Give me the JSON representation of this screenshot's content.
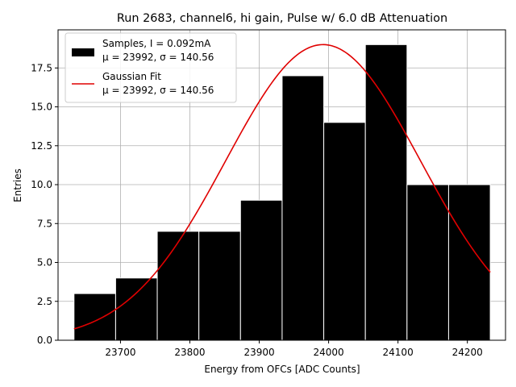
{
  "chart_data": {
    "type": "bar",
    "title": "Run 2683, channel6, hi gain, Pulse w/ 6.0 dB Attenuation",
    "xlabel": "Energy from OFCs [ADC Counts]",
    "ylabel": "Entries",
    "xlim": [
      23610,
      24255
    ],
    "ylim": [
      0,
      19.95
    ],
    "grid": true,
    "legend_placement": "top-left",
    "x_ticks": [
      23700,
      23800,
      23900,
      24000,
      24100,
      24200
    ],
    "y_ticks": [
      0.0,
      2.5,
      5.0,
      7.5,
      10.0,
      12.5,
      15.0,
      17.5
    ],
    "x_tick_labels": [
      "23700",
      "23800",
      "23900",
      "24000",
      "24100",
      "24200"
    ],
    "y_tick_labels": [
      "0.0",
      "2.5",
      "5.0",
      "7.5",
      "10.0",
      "12.5",
      "15.0",
      "17.5"
    ],
    "histogram": {
      "bin_edges": [
        23633,
        23693,
        23753,
        23813,
        23873,
        23933,
        23993,
        24053,
        24113,
        24173,
        24233
      ],
      "counts": [
        3,
        4,
        7,
        7,
        9,
        17,
        14,
        19,
        10,
        10
      ],
      "color": "#000000",
      "edge_color": "#ffffff"
    },
    "fit": {
      "type": "gaussian",
      "amplitude": 19.0,
      "mu": 23992,
      "sigma": 140.56,
      "x_range": [
        23633,
        24233
      ],
      "color": "#e00000"
    },
    "legend": [
      {
        "kind": "patch",
        "color": "#000000",
        "line1": "Samples, I = 0.092mA",
        "line2": "μ = 23992, σ = 140.56"
      },
      {
        "kind": "line",
        "color": "#e00000",
        "line1": "Gaussian Fit",
        "line2": "μ = 23992, σ = 140.56"
      }
    ]
  }
}
